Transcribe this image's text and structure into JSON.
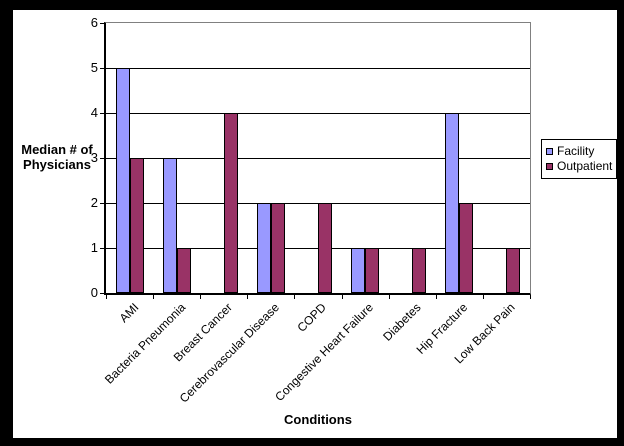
{
  "chart_data": {
    "type": "bar",
    "title": "",
    "categories": [
      "AMI",
      "Bacteria Pneumonia",
      "Breast Cancer",
      "Cerebrovascular Disease",
      "COPD",
      "Congestive Heart Failure",
      "Diabetes",
      "Hip Fracture",
      "Low Back Pain"
    ],
    "series": [
      {
        "name": "Facility",
        "color": "#9999FF",
        "values": [
          5,
          3,
          0,
          2,
          0,
          1,
          0,
          4,
          0
        ]
      },
      {
        "name": "Outpatient",
        "color": "#993366",
        "values": [
          3,
          1,
          4,
          2,
          2,
          1,
          1,
          2,
          1
        ]
      }
    ],
    "xlabel": "Conditions",
    "ylabel": "Median # of Physicians",
    "ylim": [
      0,
      6
    ],
    "yticks": [
      0,
      1,
      2,
      3,
      4,
      5,
      6
    ],
    "grid": "horizontal-major",
    "legend_position": "right",
    "colors": {
      "plot_border": "#808080",
      "gridline": "#000000",
      "axis": "#000000",
      "frame": "#000000",
      "background": "#FFFFFF"
    }
  }
}
